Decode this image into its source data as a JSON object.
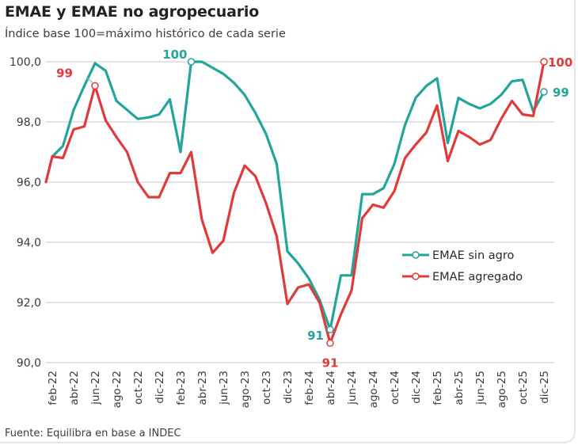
{
  "title": "EMAE y EMAE no agropecuario",
  "subtitle": "Índice base 100=máximo histórico de cada serie",
  "source": "Fuente: Equilibra en base a INDEC",
  "colors": {
    "teal": "#22a59a",
    "red": "#e03a3a",
    "grid": "#dcdcdc"
  },
  "chart_data": {
    "type": "line",
    "title": "EMAE y EMAE no agropecuario",
    "subtitle": "Índice base 100=máximo histórico de cada serie",
    "xlabel": "",
    "ylabel": "",
    "ylim": [
      90,
      100
    ],
    "yticks": [
      "90,0",
      "92,0",
      "94,0",
      "96,0",
      "98,0",
      "100,0"
    ],
    "ytick_values": [
      90,
      92,
      94,
      96,
      98,
      100
    ],
    "grid": true,
    "legend_position": "center-right",
    "x": [
      "ene-22",
      "feb-22",
      "mar-22",
      "abr-22",
      "may-22",
      "jun-22",
      "jul-22",
      "ago-22",
      "sep-22",
      "oct-22",
      "nov-22",
      "dic-22",
      "ene-23",
      "feb-23",
      "mar-23",
      "abr-23",
      "may-23",
      "jun-23",
      "jul-23",
      "ago-23",
      "sep-23",
      "oct-23",
      "nov-23",
      "dic-23",
      "ene-24",
      "feb-24",
      "mar-24",
      "abr-24",
      "may-24",
      "jun-24",
      "jul-24",
      "ago-24",
      "sep-24",
      "oct-24",
      "nov-24",
      "dic-24",
      "ene-25",
      "feb-25",
      "mar-25",
      "abr-25",
      "may-25",
      "jun-25",
      "jul-25",
      "ago-25",
      "sep-25",
      "oct-25",
      "nov-25",
      "dic-25"
    ],
    "xtick_labels": [
      "feb-22",
      "abr-22",
      "jun-22",
      "ago-22",
      "oct-22",
      "dic-22",
      "feb-23",
      "abr-23",
      "jun-23",
      "ago-23",
      "oct-23",
      "dic-23",
      "feb-24",
      "abr-24",
      "jun-24",
      "ago-24",
      "oct-24",
      "dic-24",
      "feb-25",
      "abr-25",
      "jun-25",
      "ago-25",
      "oct-25",
      "dic-25"
    ],
    "series": [
      {
        "name": "EMAE sin agro",
        "color": "#22a59a",
        "values": [
          null,
          96.85,
          97.2,
          98.4,
          99.2,
          99.95,
          99.7,
          98.7,
          98.4,
          98.1,
          98.15,
          98.25,
          98.75,
          97.0,
          100.0,
          100.0,
          99.8,
          99.6,
          99.3,
          98.9,
          98.3,
          97.6,
          96.6,
          93.7,
          93.3,
          92.8,
          92.1,
          91.1,
          92.9,
          92.9,
          95.6,
          95.6,
          95.8,
          96.6,
          97.9,
          98.8,
          99.2,
          99.45,
          97.3,
          98.8,
          98.6,
          98.45,
          98.6,
          98.9,
          99.35,
          99.4,
          98.35,
          99.0
        ]
      },
      {
        "name": "EMAE agregado",
        "color": "#e03a3a",
        "values": [
          96.0,
          96.85,
          96.8,
          97.75,
          97.85,
          99.2,
          98.05,
          97.5,
          97.0,
          96.0,
          95.5,
          95.5,
          96.3,
          96.3,
          97.0,
          94.75,
          93.65,
          94.05,
          95.65,
          96.55,
          96.2,
          95.3,
          94.2,
          91.95,
          92.5,
          92.6,
          92.0,
          90.65,
          91.6,
          92.4,
          94.8,
          95.25,
          95.15,
          95.7,
          96.8,
          97.25,
          97.65,
          98.55,
          96.7,
          97.7,
          97.5,
          97.25,
          97.4,
          98.1,
          98.7,
          98.25,
          98.2,
          100.0
        ]
      }
    ],
    "annotations": [
      {
        "series": "EMAE agregado",
        "x": "jun-22",
        "text": "99"
      },
      {
        "series": "EMAE sin agro",
        "x": "mar-23",
        "text": "100"
      },
      {
        "series": "EMAE sin agro",
        "x": "abr-24",
        "text": "91"
      },
      {
        "series": "EMAE agregado",
        "x": "abr-24",
        "text": "91"
      },
      {
        "series": "EMAE agregado",
        "x": "dic-25",
        "text": "100"
      },
      {
        "series": "EMAE sin agro",
        "x": "dic-25",
        "text": "99"
      }
    ]
  }
}
